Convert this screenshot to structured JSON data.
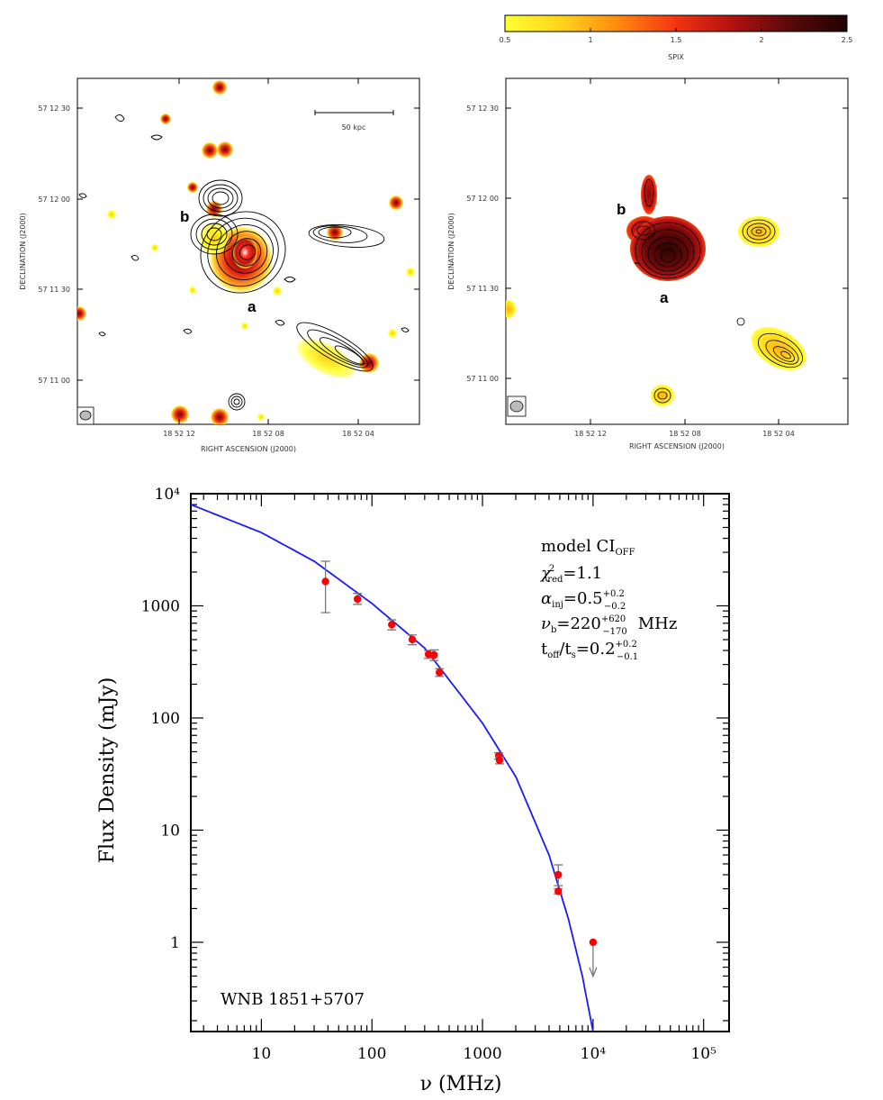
{
  "colorbar": {
    "ticks": [
      "0.5",
      "1",
      "1.5",
      "2",
      "2.5"
    ],
    "label": "SPIX",
    "stops": [
      "#ffff33",
      "#ffd21a",
      "#ff8a10",
      "#f23410",
      "#b01010",
      "#5a0a0a",
      "#200202"
    ]
  },
  "left_map": {
    "dec_ticks": [
      "57 12 30",
      "57 12 00",
      "57 11 30",
      "57 11 00"
    ],
    "ra_ticks": [
      "18 52 12",
      "18 52 08",
      "18 52 04"
    ],
    "ylabel": "DECLINATION (J2000)",
    "xlabel": "RIGHT ASCENSION (J2000)",
    "scalebar_label": "50 kpc",
    "label_a": "a",
    "label_b": "b"
  },
  "right_map": {
    "dec_ticks": [
      "57 12 30",
      "57 12 00",
      "57 11 30",
      "57 11 00"
    ],
    "ra_ticks": [
      "18 52 12",
      "18 52 08",
      "18 52 04"
    ],
    "ylabel": "DECLINATION (J2000)",
    "xlabel": "RIGHT ASCENSION (J2000)",
    "label_a": "a",
    "label_b": "b"
  },
  "chart_data": {
    "type": "scatter",
    "xscale": "log",
    "yscale": "log",
    "xlim": [
      2.3,
      170000
    ],
    "ylim": [
      0.16,
      10000
    ],
    "xlabel": "ν (MHz)",
    "ylabel": "Flux Density (mJy)",
    "x_ticks": [
      "10",
      "100",
      "1000",
      "10⁴",
      "10⁵"
    ],
    "y_ticks": [
      "1",
      "10",
      "100",
      "1000",
      "10⁴"
    ],
    "source_label": "WNB 1851+5707",
    "model_text": {
      "line1": "model CI",
      "line1_sub": "OFF",
      "line2": "χ",
      "line2_sup": "2",
      "line2_sub": "red",
      "line2_val": "=1.1",
      "line3": "α",
      "line3_sub": "inj",
      "line3_val": "=0.5",
      "line3_up": "+0.2",
      "line3_dn": "−0.2",
      "line4": "ν",
      "line4_sub": "b",
      "line4_val": "=220",
      "line4_up": "+620",
      "line4_dn": "−170",
      "line4_unit": "MHz",
      "line5a": "t",
      "line5a_sub": "off",
      "line5b": "/t",
      "line5b_sub": "s",
      "line5_val": "=0.2",
      "line5_up": "+0.2",
      "line5_dn": "−0.1"
    },
    "series": [
      {
        "name": "measurements",
        "color": "#ff0000",
        "points": [
          {
            "x": 38,
            "y": 1650,
            "lo": 870,
            "hi": 2500
          },
          {
            "x": 74,
            "y": 1150,
            "lo": 1030,
            "hi": 1290
          },
          {
            "x": 151,
            "y": 680,
            "lo": 610,
            "hi": 750
          },
          {
            "x": 232,
            "y": 500,
            "lo": 450,
            "hi": 550
          },
          {
            "x": 325,
            "y": 370,
            "lo": 340,
            "hi": 400
          },
          {
            "x": 365,
            "y": 365,
            "lo": 325,
            "hi": 405
          },
          {
            "x": 408,
            "y": 255,
            "lo": 235,
            "hi": 275
          },
          {
            "x": 1400,
            "y": 46,
            "lo": 43,
            "hi": 49
          },
          {
            "x": 1425,
            "y": 42,
            "lo": 39,
            "hi": 45
          },
          {
            "x": 4850,
            "y": 4.0,
            "lo": 3.2,
            "hi": 4.9
          },
          {
            "x": 4850,
            "y": 2.85,
            "lo": 2.7,
            "hi": 3.0
          }
        ]
      },
      {
        "name": "upper limit",
        "color": "#ff0000",
        "points": [
          {
            "x": 10000,
            "y": 1.0
          }
        ]
      },
      {
        "name": "model CI_OFF fit",
        "color": "#1a1aff",
        "points": [
          {
            "x": 2.3,
            "y": 8000
          },
          {
            "x": 10,
            "y": 4500
          },
          {
            "x": 30,
            "y": 2500
          },
          {
            "x": 100,
            "y": 1050
          },
          {
            "x": 300,
            "y": 420
          },
          {
            "x": 1000,
            "y": 90
          },
          {
            "x": 2000,
            "y": 30
          },
          {
            "x": 4000,
            "y": 6
          },
          {
            "x": 6000,
            "y": 1.6
          },
          {
            "x": 8000,
            "y": 0.5
          },
          {
            "x": 10000,
            "y": 0.16
          }
        ]
      }
    ]
  }
}
